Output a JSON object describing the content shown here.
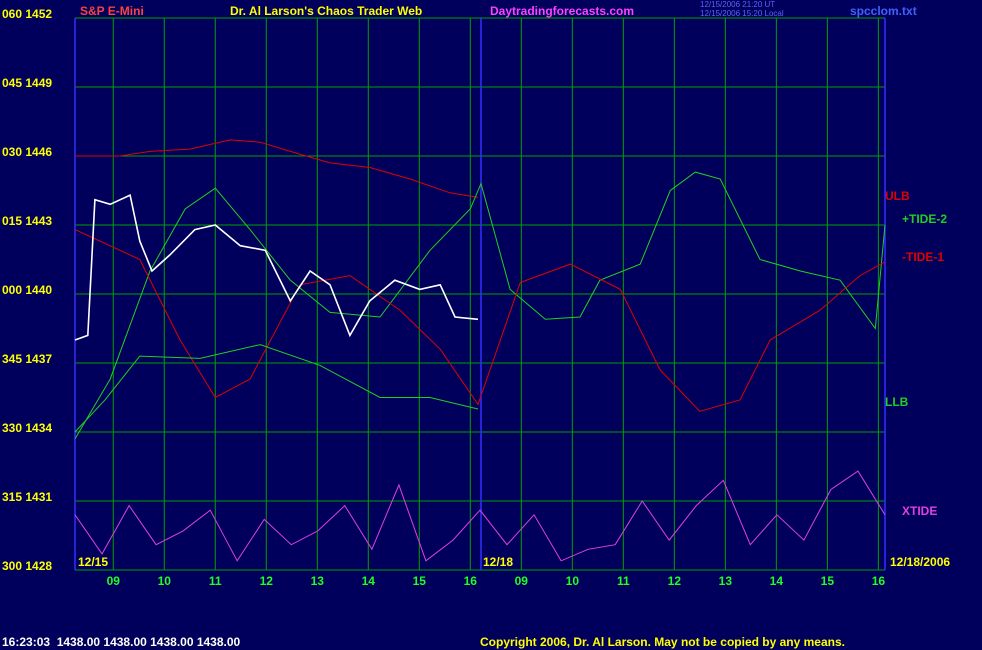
{
  "header": {
    "symbol": "S&P E-Mini",
    "title": "Dr. Al Larson's Chaos Trader Web",
    "site": "Daytradingforecasts.com",
    "timestamp_ut": "12/15/2006 21:20 UT",
    "timestamp_local": "12/15/2006 15:20 Local",
    "file": "spcclom.txt"
  },
  "chart_data": {
    "type": "line",
    "grid": true,
    "ylim": [
      1428,
      1452
    ],
    "yticks": [
      {
        "value": 1428,
        "label": "300 1428"
      },
      {
        "value": 1431,
        "label": "315 1431"
      },
      {
        "value": 1434,
        "label": "330 1434"
      },
      {
        "value": 1437,
        "label": "345 1437"
      },
      {
        "value": 1440,
        "label": "000 1440"
      },
      {
        "value": 1443,
        "label": "015 1443"
      },
      {
        "value": 1446,
        "label": "030 1446"
      },
      {
        "value": 1449,
        "label": "045 1449"
      },
      {
        "value": 1452,
        "label": "060 1452"
      }
    ],
    "xlim": [
      0,
      15.88
    ],
    "xticks": [
      {
        "value": 0.75,
        "label": "09"
      },
      {
        "value": 1.75,
        "label": "10"
      },
      {
        "value": 2.75,
        "label": "11"
      },
      {
        "value": 3.75,
        "label": "12"
      },
      {
        "value": 4.75,
        "label": "13"
      },
      {
        "value": 5.75,
        "label": "14"
      },
      {
        "value": 6.75,
        "label": "15"
      },
      {
        "value": 7.75,
        "label": "16"
      },
      {
        "value": 8.75,
        "label": "09"
      },
      {
        "value": 9.75,
        "label": "10"
      },
      {
        "value": 10.75,
        "label": "11"
      },
      {
        "value": 11.75,
        "label": "12"
      },
      {
        "value": 12.75,
        "label": "13"
      },
      {
        "value": 13.75,
        "label": "14"
      },
      {
        "value": 14.75,
        "label": "15"
      },
      {
        "value": 15.75,
        "label": "16"
      }
    ],
    "date_labels": [
      "12/15",
      "12/18",
      "12/18/2006"
    ],
    "series": [
      {
        "name": "ULB",
        "color": "#e00000",
        "x": [
          0,
          0.88,
          1.47,
          2.25,
          3.04,
          3.63,
          4.22,
          5.0,
          5.78,
          6.57,
          7.35,
          7.9
        ],
        "values": [
          1446.0,
          1446.0,
          1446.2,
          1446.3,
          1446.7,
          1446.6,
          1446.2,
          1445.7,
          1445.5,
          1445.0,
          1444.4,
          1444.2
        ]
      },
      {
        "name": "+TIDE-2",
        "color": "#20d020",
        "x": [
          0,
          0.69,
          1.47,
          2.16,
          2.75,
          3.43,
          4.22,
          5.0,
          5.98,
          6.96,
          7.75,
          7.96,
          8.53,
          9.22,
          9.9,
          10.29,
          11.08,
          11.67,
          12.16,
          12.65,
          13.43,
          14.22,
          15.0,
          15.69,
          15.88
        ],
        "values": [
          1433.7,
          1436.3,
          1441.0,
          1443.7,
          1444.6,
          1442.8,
          1440.6,
          1439.2,
          1439.0,
          1441.9,
          1443.7,
          1444.8,
          1440.2,
          1438.9,
          1439.0,
          1440.6,
          1441.3,
          1444.5,
          1445.3,
          1445.0,
          1441.5,
          1441.0,
          1440.6,
          1438.5,
          1443.0
        ]
      },
      {
        "name": "-TIDE-1",
        "color": "#e00000",
        "x": [
          0,
          1.27,
          2.06,
          2.75,
          3.43,
          4.41,
          5.39,
          6.37,
          7.16,
          7.9,
          8.73,
          9.71,
          10.69,
          11.47,
          12.25,
          13.04,
          13.63,
          14.61,
          15.39,
          15.88
        ],
        "values": [
          1442.8,
          1441.5,
          1438.0,
          1435.5,
          1436.3,
          1440.4,
          1440.8,
          1439.3,
          1437.6,
          1435.2,
          1440.5,
          1441.3,
          1440.2,
          1436.7,
          1434.9,
          1435.4,
          1438.0,
          1439.3,
          1440.8,
          1441.4
        ]
      },
      {
        "name": "LLB",
        "color": "#20d020",
        "x": [
          0,
          0.59,
          1.27,
          2.45,
          3.63,
          4.8,
          5.98,
          6.96,
          7.9
        ],
        "values": [
          1434.0,
          1435.4,
          1437.3,
          1437.2,
          1437.8,
          1436.9,
          1435.5,
          1435.5,
          1435.0
        ]
      },
      {
        "name": "XTIDE",
        "color": "#e040e0",
        "x": [
          0,
          0.53,
          1.06,
          1.59,
          2.12,
          2.65,
          3.18,
          3.71,
          4.24,
          4.76,
          5.29,
          5.82,
          6.35,
          6.88,
          7.41,
          7.94,
          8.47,
          9,
          9.53,
          10.06,
          10.59,
          11.12,
          11.65,
          12.18,
          12.71,
          13.24,
          13.76,
          14.29,
          14.82,
          15.35,
          15.88
        ],
        "values": [
          1430.4,
          1428.7,
          1430.8,
          1429.1,
          1429.7,
          1430.6,
          1428.4,
          1430.2,
          1429.1,
          1429.7,
          1430.8,
          1428.9,
          1431.7,
          1428.4,
          1429.3,
          1430.6,
          1429.1,
          1430.4,
          1428.4,
          1428.9,
          1429.1,
          1431.0,
          1429.3,
          1430.8,
          1431.9,
          1429.1,
          1430.4,
          1429.3,
          1431.5,
          1432.3,
          1430.4
        ]
      },
      {
        "color": "#ffffff",
        "x": [
          0,
          0.25,
          0.39,
          0.69,
          1.08,
          1.27,
          1.51,
          1.86,
          2.35,
          2.75,
          3.24,
          3.73,
          4.22,
          4.61,
          5.0,
          5.39,
          5.78,
          6.27,
          6.76,
          7.16,
          7.45,
          7.9
        ],
        "values": [
          1438.0,
          1438.2,
          1444.1,
          1443.9,
          1444.3,
          1442.3,
          1441.0,
          1441.7,
          1442.8,
          1443.0,
          1442.1,
          1441.9,
          1439.7,
          1441.0,
          1440.4,
          1438.2,
          1439.7,
          1440.6,
          1440.2,
          1440.4,
          1439.0,
          1438.9
        ]
      }
    ]
  },
  "footer": {
    "status": "16:23:03  1438.00 1438.00 1438.00 1438.00",
    "copyright": "Copyright 2006, Dr. Al Larson. May not be copied by any means."
  }
}
